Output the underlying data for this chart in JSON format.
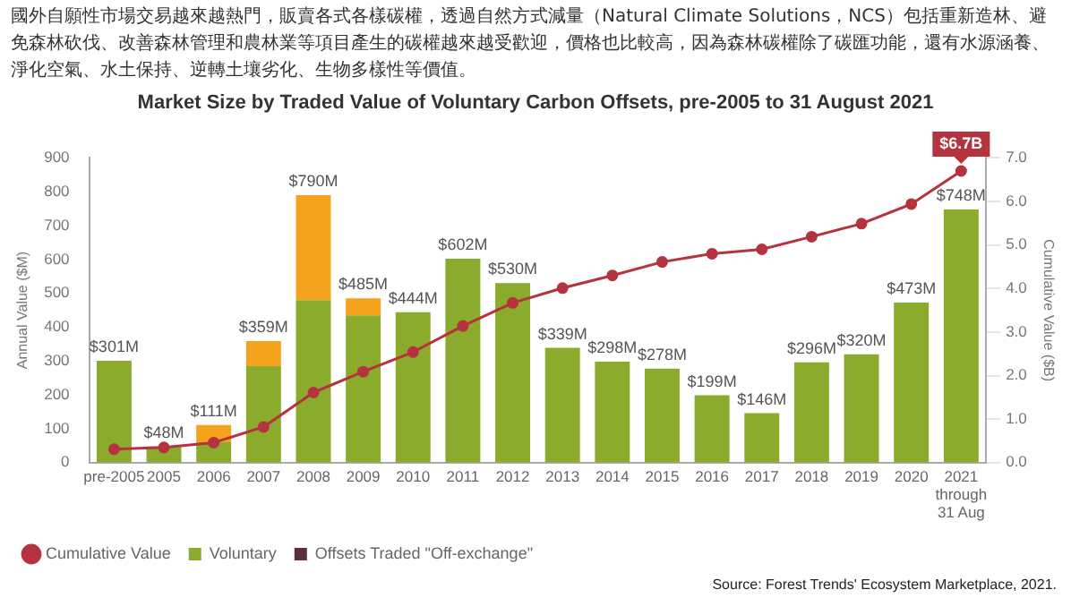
{
  "chart_data": {
    "type": "bar",
    "title": "Market Size by Traded Value of Voluntary Carbon Offsets, pre-2005 to 31 August 2021",
    "categories": [
      "pre-2005",
      "2005",
      "2006",
      "2007",
      "2008",
      "2009",
      "2010",
      "2011",
      "2012",
      "2013",
      "2014",
      "2015",
      "2016",
      "2017",
      "2018",
      "2019",
      "2020",
      "2021\nthrough\n31 Aug"
    ],
    "stacked": true,
    "series": [
      {
        "name": "Voluntary",
        "color": "#8aab2c",
        "values": [
          301,
          48,
          60,
          285,
          480,
          435,
          444,
          602,
          530,
          339,
          298,
          278,
          199,
          146,
          296,
          320,
          473,
          748
        ]
      },
      {
        "color": "#f5a21c",
        "values": [
          null,
          null,
          51,
          74,
          310,
          50,
          null,
          null,
          null,
          null,
          null,
          null,
          null,
          null,
          null,
          null,
          null,
          null
        ]
      },
      {
        "name": "Offsets Traded \"Off-exchange\"",
        "color": "#5a2d3f",
        "values": [
          null,
          null,
          null,
          null,
          null,
          null,
          null,
          null,
          null,
          null,
          null,
          null,
          null,
          null,
          null,
          null,
          null,
          null
        ]
      },
      {
        "name": "Cumulative Value",
        "type": "line",
        "axis": "y2",
        "color": "#b5323f",
        "marker": "circle",
        "values": [
          0.31,
          0.35,
          0.46,
          0.82,
          1.61,
          2.09,
          2.54,
          3.14,
          3.67,
          4.01,
          4.3,
          4.61,
          4.8,
          4.9,
          5.19,
          5.49,
          5.94,
          6.7
        ],
        "value_labels": [
          null,
          null,
          null,
          null,
          null,
          null,
          null,
          null,
          null,
          null,
          null,
          null,
          null,
          null,
          null,
          null,
          null,
          "$6.7B"
        ]
      }
    ],
    "totals": [
      "$301M",
      "$48M",
      "$111M",
      "$359M",
      "$790M",
      "$485M",
      "$444M",
      "$602M",
      "$530M",
      "$339M",
      "$298M",
      "$278M",
      "$199M",
      "$146M",
      "$296M",
      "$320M",
      "$473M",
      "$748M"
    ],
    "ylabel": "Annual Value ($M)",
    "y2label": "Cumulative Value ($B)",
    "ylim": [
      0,
      900
    ],
    "yticks": [
      0,
      100,
      200,
      300,
      400,
      500,
      600,
      700,
      800,
      900
    ],
    "y2lim": [
      0,
      7
    ],
    "y2ticks": [
      {
        "value": 0,
        "label": "0.0"
      },
      {
        "value": 1,
        "label": "1.0"
      },
      {
        "value": 2,
        "label": "2.0"
      },
      {
        "value": 3,
        "label": "3.0"
      },
      {
        "value": 4,
        "label": "4.0"
      },
      {
        "value": 5,
        "label": "5.0"
      },
      {
        "value": 6,
        "label": "6.0"
      },
      {
        "value": 7,
        "label": "7.0"
      }
    ],
    "grid": false,
    "legend": "bottom",
    "annotations": [
      "國外自願性市場交易越來越熱門，販賣各式各樣碳權，透過自然方式減量（Natural Climate Solutions，NCS）包括重新造林、避免森林砍伐、改善森林管理和農林業等項目產生的碳權越來越受歡迎，價格也比較高，因為森林碳權除了碳匯功能，還有水源涵養、淨化空氣、水土保持、逆轉土壤劣化、生物多樣性等價值。",
      "Source: Forest Trends' Ecosystem Marketplace, 2021."
    ]
  }
}
